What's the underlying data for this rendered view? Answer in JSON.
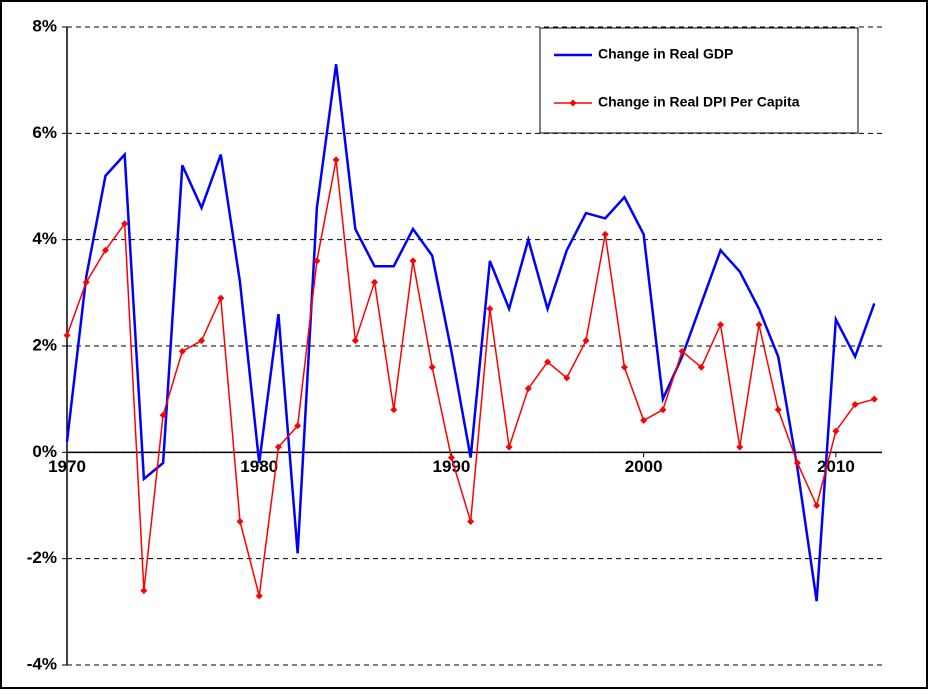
{
  "chart_data": {
    "type": "line",
    "x": [
      1970,
      1971,
      1972,
      1973,
      1974,
      1975,
      1976,
      1977,
      1978,
      1979,
      1980,
      1981,
      1982,
      1983,
      1984,
      1985,
      1986,
      1987,
      1988,
      1989,
      1990,
      1991,
      1992,
      1993,
      1994,
      1995,
      1996,
      1997,
      1998,
      1999,
      2000,
      2001,
      2002,
      2003,
      2004,
      2005,
      2006,
      2007,
      2008,
      2009,
      2010,
      2011,
      2012
    ],
    "series": [
      {
        "name": "Change in Real GDP",
        "color": "#0000ff",
        "marker": false,
        "values": [
          0.2,
          3.3,
          5.2,
          5.6,
          -0.5,
          -0.2,
          5.4,
          4.6,
          5.6,
          3.2,
          -0.2,
          2.6,
          -1.9,
          4.6,
          7.3,
          4.2,
          3.5,
          3.5,
          4.2,
          3.7,
          1.9,
          -0.1,
          3.6,
          2.7,
          4.0,
          2.7,
          3.8,
          4.5,
          4.4,
          4.8,
          4.1,
          1.0,
          1.8,
          2.8,
          3.8,
          3.4,
          2.7,
          1.8,
          -0.3,
          -2.8,
          2.5,
          1.8,
          2.8
        ]
      },
      {
        "name": "Change in Real DPI Per Capita",
        "color": "#ff0000",
        "marker": true,
        "values": [
          2.2,
          3.2,
          3.8,
          4.3,
          -2.6,
          0.7,
          1.9,
          2.1,
          2.9,
          -1.3,
          -2.7,
          0.1,
          0.5,
          3.6,
          5.5,
          2.1,
          3.2,
          0.8,
          3.6,
          1.6,
          -0.1,
          -1.3,
          2.7,
          0.1,
          1.2,
          1.7,
          1.4,
          2.1,
          4.1,
          1.6,
          0.6,
          0.8,
          1.9,
          1.6,
          2.4,
          0.1,
          2.4,
          0.8,
          -0.2,
          -1.0,
          0.4,
          0.9,
          1.0
        ]
      }
    ],
    "xlim": [
      1970,
      2012.4
    ],
    "xticks": [
      1970,
      1980,
      1990,
      2000,
      2010
    ],
    "ylim": [
      -4,
      8
    ],
    "yticks": [
      {
        "value": -4,
        "label": "-4%"
      },
      {
        "value": -2,
        "label": "-2%"
      },
      {
        "value": 0,
        "label": "0%"
      },
      {
        "value": 2,
        "label": "2%"
      },
      {
        "value": 4,
        "label": "4%"
      },
      {
        "value": 6,
        "label": "6%"
      },
      {
        "value": 8,
        "label": "8%"
      }
    ],
    "grid": true,
    "legend": "upper right"
  }
}
